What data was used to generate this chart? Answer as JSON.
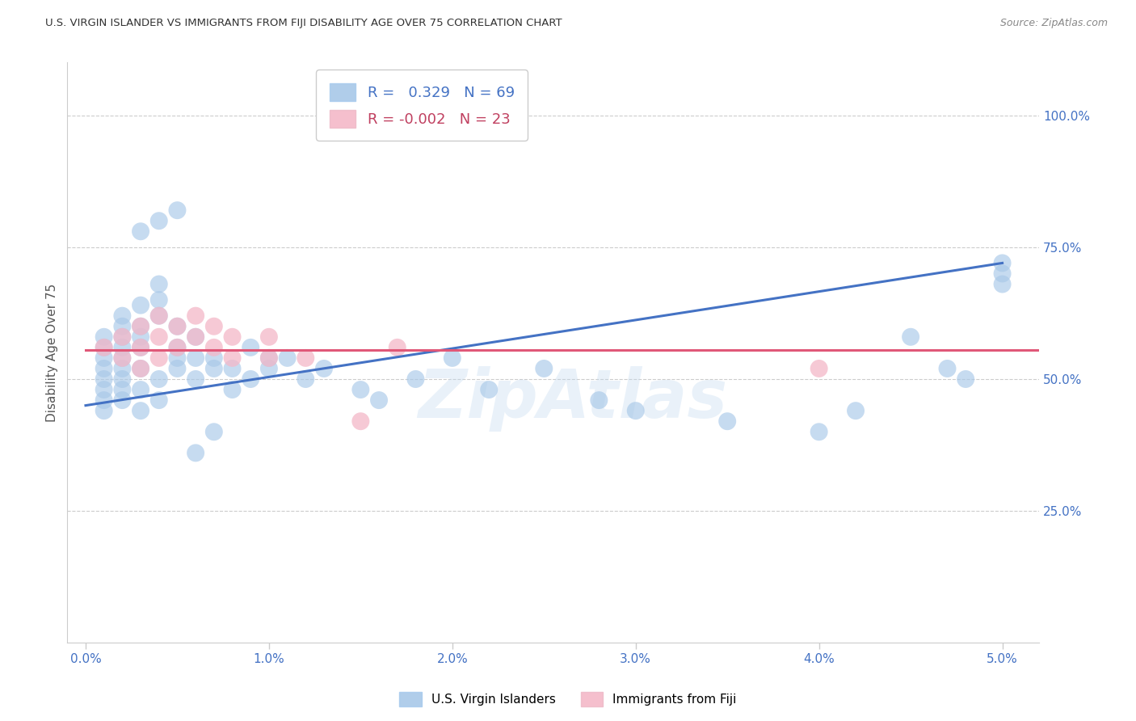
{
  "title": "U.S. VIRGIN ISLANDER VS IMMIGRANTS FROM FIJI DISABILITY AGE OVER 75 CORRELATION CHART",
  "source": "Source: ZipAtlas.com",
  "ylabel": "Disability Age Over 75",
  "ytick_labels": [
    "100.0%",
    "75.0%",
    "50.0%",
    "25.0%"
  ],
  "ytick_values": [
    1.0,
    0.75,
    0.5,
    0.25
  ],
  "xtick_values": [
    0.0,
    0.01,
    0.02,
    0.03,
    0.04,
    0.05
  ],
  "xtick_labels": [
    "0.0%",
    "1.0%",
    "2.0%",
    "3.0%",
    "4.0%",
    "5.0%"
  ],
  "xlim": [
    -0.001,
    0.052
  ],
  "ylim": [
    0.0,
    1.1
  ],
  "legend_r1": "R =   0.329   N = 69",
  "legend_r2": "R = -0.002   N = 23",
  "blue_color": "#a8c8e8",
  "pink_color": "#f4b8c8",
  "line_blue": "#4472c4",
  "line_pink": "#e05878",
  "blue_scatter_x": [
    0.001,
    0.001,
    0.001,
    0.001,
    0.001,
    0.001,
    0.001,
    0.001,
    0.002,
    0.002,
    0.002,
    0.002,
    0.002,
    0.002,
    0.002,
    0.002,
    0.002,
    0.003,
    0.003,
    0.003,
    0.003,
    0.003,
    0.003,
    0.003,
    0.004,
    0.004,
    0.004,
    0.004,
    0.004,
    0.005,
    0.005,
    0.005,
    0.005,
    0.006,
    0.006,
    0.006,
    0.007,
    0.007,
    0.008,
    0.008,
    0.009,
    0.009,
    0.01,
    0.01,
    0.011,
    0.012,
    0.013,
    0.015,
    0.016,
    0.018,
    0.02,
    0.022,
    0.025,
    0.028,
    0.03,
    0.035,
    0.04,
    0.042,
    0.045,
    0.047,
    0.048,
    0.05,
    0.05,
    0.05,
    0.003,
    0.004,
    0.005,
    0.006,
    0.007
  ],
  "blue_scatter_y": [
    0.52,
    0.54,
    0.56,
    0.5,
    0.58,
    0.48,
    0.46,
    0.44,
    0.54,
    0.56,
    0.52,
    0.6,
    0.5,
    0.58,
    0.46,
    0.48,
    0.62,
    0.64,
    0.6,
    0.56,
    0.52,
    0.48,
    0.44,
    0.58,
    0.68,
    0.65,
    0.62,
    0.5,
    0.46,
    0.56,
    0.54,
    0.52,
    0.6,
    0.58,
    0.54,
    0.5,
    0.52,
    0.54,
    0.48,
    0.52,
    0.56,
    0.5,
    0.54,
    0.52,
    0.54,
    0.5,
    0.52,
    0.48,
    0.46,
    0.5,
    0.54,
    0.48,
    0.52,
    0.46,
    0.44,
    0.42,
    0.4,
    0.44,
    0.58,
    0.52,
    0.5,
    0.68,
    0.7,
    0.72,
    0.78,
    0.8,
    0.82,
    0.36,
    0.4
  ],
  "pink_scatter_x": [
    0.001,
    0.002,
    0.002,
    0.003,
    0.003,
    0.003,
    0.004,
    0.004,
    0.004,
    0.005,
    0.005,
    0.006,
    0.006,
    0.007,
    0.007,
    0.008,
    0.008,
    0.01,
    0.01,
    0.012,
    0.015,
    0.017,
    0.04
  ],
  "pink_scatter_y": [
    0.56,
    0.58,
    0.54,
    0.6,
    0.56,
    0.52,
    0.62,
    0.58,
    0.54,
    0.6,
    0.56,
    0.62,
    0.58,
    0.6,
    0.56,
    0.58,
    0.54,
    0.58,
    0.54,
    0.54,
    0.42,
    0.56,
    0.52
  ],
  "blue_line_x": [
    0.0,
    0.05
  ],
  "blue_line_y": [
    0.45,
    0.72
  ],
  "pink_line_x": [
    0.0,
    0.052
  ],
  "pink_line_y": [
    0.555,
    0.555
  ],
  "watermark": "ZipAtlas",
  "grid_color": "#cccccc",
  "spine_color": "#cccccc",
  "tick_color": "#4472c4",
  "ylabel_color": "#555555",
  "title_color": "#333333",
  "source_color": "#888888",
  "legend_text_color": "#333333",
  "legend_r1_color": "#4472c4",
  "legend_r2_color": "#c04060"
}
